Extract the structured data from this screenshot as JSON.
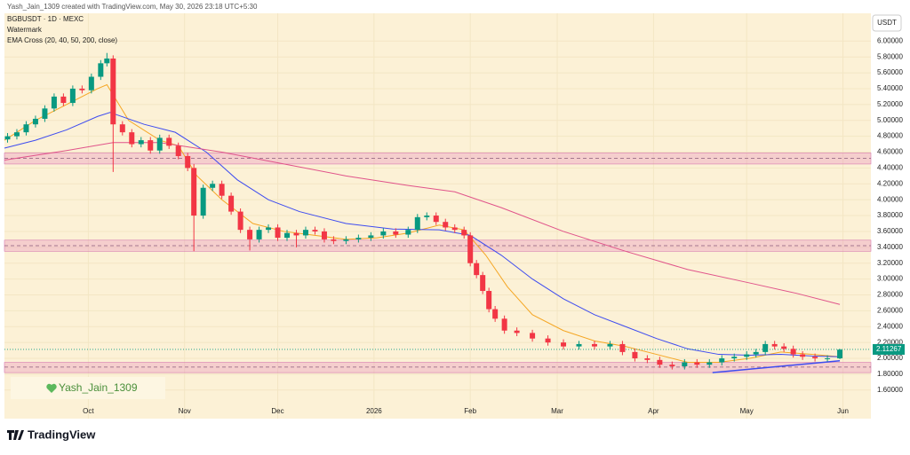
{
  "chart_data": {
    "type": "candlestick",
    "credit": "Yash_Jain_1309 created with TradingView.com, May 30, 2026 23:18 UTC+5:30",
    "symbol": "BGBUSDT · 1D · MEXC",
    "watermark_label": "Watermark",
    "indicator": "EMA Cross (20, 40, 50, 200, close)",
    "currency": "USDT",
    "watermark_text": "Yash_Jain_1309",
    "brand": "TradingView",
    "up_color": "#089981",
    "down_color": "#f23645",
    "xlim": [
      0,
      279
    ],
    "xticks": [
      {
        "value": 27,
        "label": "Oct"
      },
      {
        "value": 58,
        "label": "Nov"
      },
      {
        "value": 88,
        "label": "Dec"
      },
      {
        "value": 119,
        "label": "2026"
      },
      {
        "value": 150,
        "label": "Feb"
      },
      {
        "value": 178,
        "label": "Mar"
      },
      {
        "value": 209,
        "label": "Apr"
      },
      {
        "value": 239,
        "label": "May"
      },
      {
        "value": 270,
        "label": "Jun"
      }
    ],
    "ylim": [
      1.24,
      6.35
    ],
    "yticks": [
      {
        "value": 1.6,
        "label": "1.60000"
      },
      {
        "value": 1.8,
        "label": "1.80000"
      },
      {
        "value": 2.0,
        "label": "2.00000"
      },
      {
        "value": 2.2,
        "label": "2.20000"
      },
      {
        "value": 2.4,
        "label": "2.40000"
      },
      {
        "value": 2.6,
        "label": "2.60000"
      },
      {
        "value": 2.8,
        "label": "2.80000"
      },
      {
        "value": 3.0,
        "label": "3.00000"
      },
      {
        "value": 3.2,
        "label": "3.20000"
      },
      {
        "value": 3.4,
        "label": "3.40000"
      },
      {
        "value": 3.6,
        "label": "3.60000"
      },
      {
        "value": 3.8,
        "label": "3.80000"
      },
      {
        "value": 4.0,
        "label": "4.00000"
      },
      {
        "value": 4.2,
        "label": "4.20000"
      },
      {
        "value": 4.4,
        "label": "4.40000"
      },
      {
        "value": 4.6,
        "label": "4.60000"
      },
      {
        "value": 4.8,
        "label": "4.80000"
      },
      {
        "value": 5.0,
        "label": "5.00000"
      },
      {
        "value": 5.2,
        "label": "5.20000"
      },
      {
        "value": 5.4,
        "label": "5.40000"
      },
      {
        "value": 5.6,
        "label": "5.60000"
      },
      {
        "value": 5.8,
        "label": "5.80000"
      },
      {
        "value": 6.0,
        "label": "6.00000"
      }
    ],
    "last_price": 2.11267,
    "candles": {
      "x": [
        1,
        4,
        7,
        10,
        13,
        16,
        19,
        22,
        25,
        28,
        31,
        33,
        35,
        38,
        41,
        44,
        47,
        50,
        53,
        56,
        59,
        61,
        64,
        67,
        70,
        73,
        76,
        79,
        82,
        85,
        88,
        91,
        94,
        97,
        100,
        103,
        106,
        110,
        114,
        118,
        122,
        126,
        130,
        133,
        136,
        139,
        142,
        145,
        148,
        150,
        152,
        154,
        156,
        158,
        161,
        165,
        170,
        175,
        180,
        185,
        190,
        195,
        199,
        203,
        207,
        211,
        215,
        219,
        223,
        227,
        231,
        235,
        239,
        242,
        245,
        248,
        251,
        254,
        257,
        261,
        265,
        269
      ],
      "open": [
        4.76,
        4.8,
        4.85,
        4.95,
        5.02,
        5.15,
        5.3,
        5.22,
        5.4,
        5.38,
        5.55,
        5.72,
        5.78,
        4.95,
        4.85,
        4.7,
        4.75,
        4.62,
        4.78,
        4.68,
        4.55,
        4.4,
        3.8,
        4.15,
        4.2,
        4.05,
        3.85,
        3.62,
        3.5,
        3.62,
        3.65,
        3.52,
        3.58,
        3.55,
        3.62,
        3.6,
        3.5,
        3.48,
        3.5,
        3.52,
        3.55,
        3.6,
        3.56,
        3.62,
        3.78,
        3.8,
        3.72,
        3.65,
        3.62,
        3.55,
        3.2,
        3.05,
        2.85,
        2.62,
        2.5,
        2.35,
        2.32,
        2.25,
        2.2,
        2.15,
        2.18,
        2.15,
        2.18,
        2.08,
        2.0,
        1.98,
        1.92,
        1.9,
        1.95,
        1.92,
        1.95,
        2.0,
        2.02,
        2.05,
        2.08,
        2.18,
        2.15,
        2.12,
        2.05,
        2.02,
        2.0,
        2.0
      ],
      "high": [
        4.84,
        4.89,
        4.99,
        5.06,
        5.19,
        5.34,
        5.34,
        5.44,
        5.44,
        5.59,
        5.76,
        5.85,
        5.82,
        4.99,
        4.89,
        4.79,
        4.79,
        4.82,
        4.82,
        4.72,
        4.59,
        4.45,
        4.19,
        4.24,
        4.24,
        4.09,
        3.89,
        3.66,
        3.66,
        3.69,
        3.69,
        3.62,
        3.62,
        3.66,
        3.66,
        3.64,
        3.54,
        3.54,
        3.56,
        3.59,
        3.64,
        3.64,
        3.66,
        3.82,
        3.84,
        3.84,
        3.76,
        3.69,
        3.66,
        3.59,
        3.24,
        3.09,
        2.89,
        2.66,
        2.54,
        2.39,
        2.36,
        2.29,
        2.24,
        2.22,
        2.22,
        2.22,
        2.22,
        2.12,
        2.04,
        2.02,
        1.96,
        1.99,
        1.99,
        1.99,
        2.04,
        2.06,
        2.09,
        2.12,
        2.22,
        2.22,
        2.19,
        2.16,
        2.09,
        2.06,
        2.04,
        2.12
      ],
      "low": [
        4.72,
        4.76,
        4.81,
        4.91,
        4.98,
        5.11,
        5.18,
        5.18,
        5.34,
        5.34,
        5.51,
        5.68,
        4.35,
        4.81,
        4.66,
        4.66,
        4.58,
        4.58,
        4.64,
        4.51,
        4.36,
        3.35,
        3.76,
        4.11,
        4.01,
        3.81,
        3.58,
        3.36,
        3.46,
        3.58,
        3.48,
        3.48,
        3.4,
        3.51,
        3.56,
        3.46,
        3.44,
        3.44,
        3.46,
        3.48,
        3.51,
        3.52,
        3.52,
        3.58,
        3.74,
        3.68,
        3.61,
        3.58,
        3.51,
        3.16,
        3.01,
        2.81,
        2.58,
        2.46,
        2.31,
        2.28,
        2.21,
        2.16,
        2.11,
        2.11,
        2.11,
        2.11,
        2.04,
        1.96,
        1.94,
        1.88,
        1.86,
        1.86,
        1.88,
        1.88,
        1.91,
        1.96,
        1.98,
        2.01,
        2.04,
        2.11,
        2.08,
        2.01,
        1.98,
        1.96,
        1.96,
        1.99
      ],
      "close": [
        4.8,
        4.85,
        4.95,
        5.02,
        5.15,
        5.3,
        5.22,
        5.4,
        5.38,
        5.55,
        5.72,
        5.78,
        4.95,
        4.85,
        4.7,
        4.75,
        4.62,
        4.78,
        4.68,
        4.55,
        4.4,
        3.8,
        4.15,
        4.2,
        4.05,
        3.85,
        3.62,
        3.5,
        3.62,
        3.65,
        3.52,
        3.58,
        3.55,
        3.62,
        3.6,
        3.5,
        3.48,
        3.5,
        3.52,
        3.55,
        3.6,
        3.56,
        3.62,
        3.78,
        3.8,
        3.72,
        3.65,
        3.62,
        3.55,
        3.2,
        3.05,
        2.85,
        2.62,
        2.5,
        2.35,
        2.32,
        2.25,
        2.2,
        2.15,
        2.18,
        2.15,
        2.18,
        2.08,
        2.0,
        1.98,
        1.92,
        1.9,
        1.95,
        1.92,
        1.95,
        2.0,
        2.02,
        2.05,
        2.08,
        2.18,
        2.15,
        2.12,
        2.05,
        2.02,
        2.0,
        2.0,
        2.11
      ]
    },
    "series": [
      {
        "color": "#f5a623",
        "x": [
          0,
          10,
          20,
          30,
          33,
          40,
          50,
          56,
          62,
          70,
          80,
          90,
          100,
          110,
          120,
          130,
          140,
          148,
          155,
          162,
          170,
          180,
          190,
          200,
          210,
          220,
          230,
          240,
          250,
          260,
          269
        ],
        "values": [
          4.75,
          5.0,
          5.2,
          5.4,
          5.45,
          5.0,
          4.75,
          4.68,
          4.3,
          4.0,
          3.7,
          3.6,
          3.55,
          3.5,
          3.52,
          3.58,
          3.68,
          3.62,
          3.3,
          2.9,
          2.55,
          2.35,
          2.22,
          2.15,
          2.05,
          1.95,
          1.95,
          2.0,
          2.08,
          2.05,
          2.02
        ]
      },
      {
        "color": "#3d4bf0",
        "x": [
          0,
          10,
          20,
          30,
          34,
          45,
          55,
          65,
          75,
          85,
          95,
          110,
          125,
          140,
          150,
          160,
          170,
          180,
          190,
          200,
          210,
          220,
          230,
          240,
          250,
          260,
          269
        ],
        "values": [
          4.65,
          4.75,
          4.88,
          5.05,
          5.1,
          4.95,
          4.85,
          4.6,
          4.25,
          4.0,
          3.85,
          3.7,
          3.63,
          3.62,
          3.55,
          3.3,
          3.0,
          2.75,
          2.55,
          2.4,
          2.25,
          2.12,
          2.05,
          2.04,
          2.05,
          2.03,
          2.02
        ]
      },
      {
        "color": "#e0538a",
        "x": [
          0,
          20,
          35,
          50,
          70,
          90,
          110,
          130,
          145,
          160,
          180,
          200,
          220,
          240,
          255,
          269
        ],
        "values": [
          4.5,
          4.62,
          4.72,
          4.72,
          4.6,
          4.45,
          4.3,
          4.18,
          4.1,
          3.9,
          3.6,
          3.35,
          3.12,
          2.95,
          2.82,
          2.68
        ]
      }
    ],
    "zones": [
      {
        "low": 4.45,
        "high": 4.59,
        "mid": 4.52
      },
      {
        "low": 3.35,
        "high": 3.49,
        "mid": 3.42
      },
      {
        "low": 1.82,
        "high": 1.95,
        "mid": 1.89
      }
    ],
    "trendline": {
      "x": [
        228,
        269
      ],
      "y": [
        1.82,
        1.97
      ]
    }
  }
}
